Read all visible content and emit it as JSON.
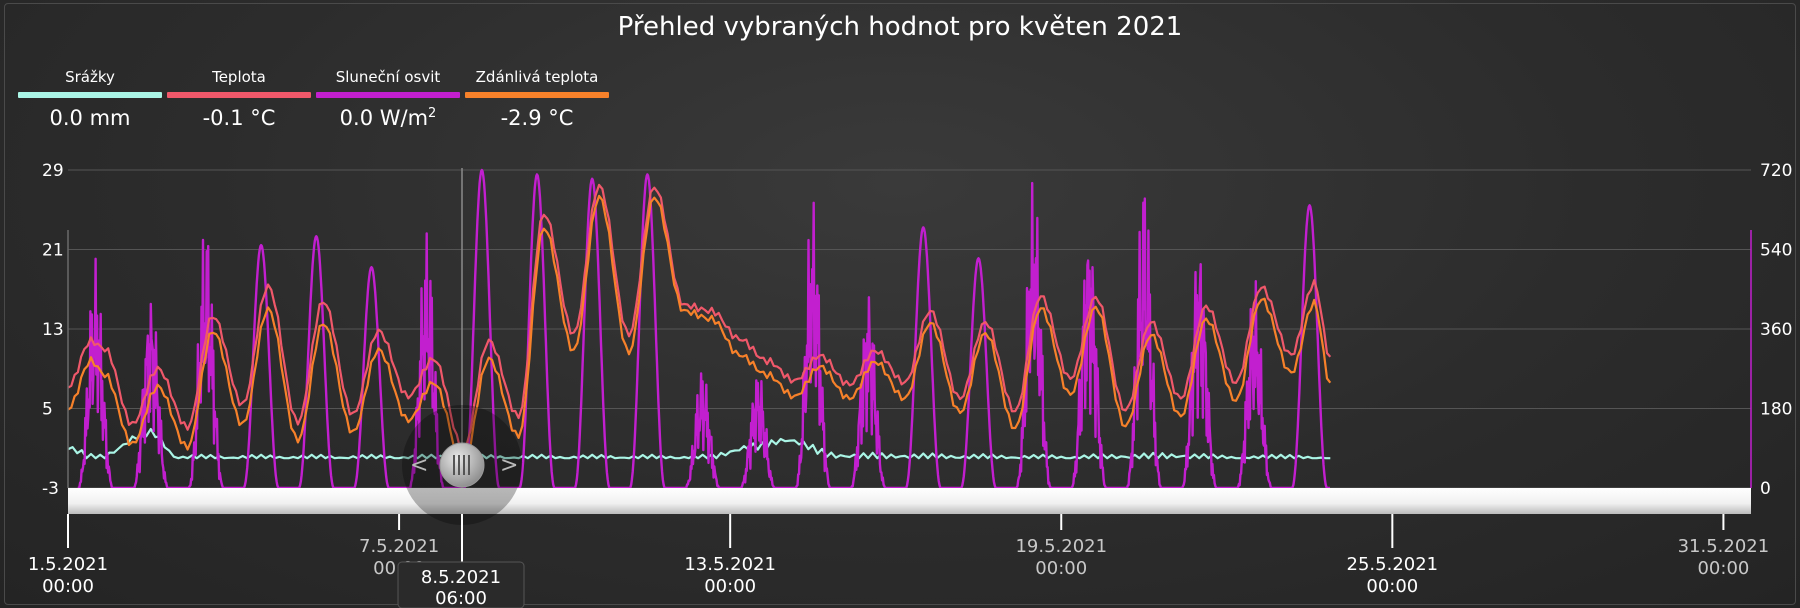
{
  "title": "Přehled vybraných hodnot pro květen 2021",
  "legend": [
    {
      "name": "Srážky",
      "value": "0.0 mm",
      "color": "#aaf5e6"
    },
    {
      "name": "Teplota",
      "value": "-0.1 °C",
      "color": "#f0586a"
    },
    {
      "name": "Sluneční osvit",
      "value_main": "0.0 W/m",
      "value_sup": "2",
      "color": "#c21fcf"
    },
    {
      "name": "Zdánlivá teplota",
      "value": "-2.9 °C",
      "color": "#f7812a"
    }
  ],
  "cursor": {
    "date": "8.5.2021",
    "time": "06:00"
  },
  "x_ticks": [
    {
      "date": "1.5.2021",
      "time": "00:00",
      "dim": false,
      "row": "low"
    },
    {
      "date": "7.5.2021",
      "time": "00:00",
      "dim": true,
      "row": "high"
    },
    {
      "date": "13.5.2021",
      "time": "00:00",
      "dim": false,
      "row": "low"
    },
    {
      "date": "19.5.2021",
      "time": "00:00",
      "dim": true,
      "row": "high"
    },
    {
      "date": "25.5.2021",
      "time": "00:00",
      "dim": false,
      "row": "low"
    },
    {
      "date": "31.5.2021",
      "time": "00:00",
      "dim": true,
      "row": "high"
    }
  ],
  "chart_data": {
    "type": "line",
    "x_unit": "days since 1.5.2021 00:00",
    "xlim": [
      "1.5.2021 00:00",
      "31.5.2021 12:00"
    ],
    "y_left": {
      "ticks": [
        -3,
        5,
        13,
        21,
        29
      ],
      "ylim": [
        -3,
        29
      ]
    },
    "y_right": {
      "ticks": [
        0,
        180,
        360,
        540,
        720
      ],
      "ylim": [
        0,
        720
      ]
    },
    "grid": true,
    "legend_position": "top-left",
    "cursor_at": "8.5.2021 06:00",
    "series": [
      {
        "name": "Teplota",
        "axis": "left",
        "color": "#f0586a",
        "x": [
          "1.5.2021 00:00",
          "1.5.2021 10:00",
          "1.5.2021 16:00",
          "2.5.2021 04:00",
          "2.5.2021 15:00",
          "3.5.2021 04:00",
          "3.5.2021 15:00",
          "4.5.2021 04:00",
          "4.5.2021 15:00",
          "5.5.2021 04:00",
          "5.5.2021 15:00",
          "6.5.2021 04:00",
          "6.5.2021 15:00",
          "7.5.2021 04:00",
          "7.5.2021 15:00",
          "8.5.2021 04:00",
          "8.5.2021 15:00",
          "9.5.2021 04:00",
          "9.5.2021 15:00",
          "10.5.2021 04:00",
          "10.5.2021 15:00",
          "11.5.2021 04:00",
          "11.5.2021 15:00",
          "12.5.2021 04:00",
          "12.5.2021 16:00",
          "13.5.2021 04:00",
          "13.5.2021 16:00",
          "14.5.2021 04:00",
          "14.5.2021 15:00",
          "15.5.2021 04:00",
          "15.5.2021 15:00",
          "16.5.2021 04:00",
          "16.5.2021 15:00",
          "17.5.2021 04:00",
          "17.5.2021 15:00",
          "18.5.2021 04:00",
          "18.5.2021 15:00",
          "19.5.2021 04:00",
          "19.5.2021 15:00",
          "20.5.2021 04:00",
          "20.5.2021 15:00",
          "21.5.2021 04:00",
          "21.5.2021 15:00",
          "22.5.2021 04:00",
          "22.5.2021 15:00",
          "23.5.2021 04:00",
          "23.5.2021 14:00",
          "23.5.2021 21:00"
        ],
        "values": [
          7.2,
          11.8,
          11.0,
          3.4,
          9.0,
          3.1,
          14.3,
          5.4,
          17.3,
          3.6,
          15.8,
          4.4,
          12.8,
          6.2,
          10.0,
          1.0,
          11.8,
          4.2,
          24.6,
          12.5,
          27.4,
          12.4,
          27.3,
          15.4,
          14.8,
          12.0,
          9.8,
          7.8,
          10.3,
          7.4,
          10.8,
          7.6,
          14.8,
          6.0,
          13.7,
          4.7,
          16.3,
          8.0,
          16.2,
          4.8,
          13.7,
          6.0,
          15.3,
          7.6,
          17.2,
          10.4,
          17.6,
          10.2
        ]
      },
      {
        "name": "Zdánlivá teplota",
        "axis": "left",
        "color": "#f7812a",
        "x": [
          "1.5.2021 00:00",
          "1.5.2021 10:00",
          "1.5.2021 16:00",
          "2.5.2021 04:00",
          "2.5.2021 15:00",
          "3.5.2021 04:00",
          "3.5.2021 15:00",
          "4.5.2021 04:00",
          "4.5.2021 15:00",
          "5.5.2021 04:00",
          "5.5.2021 15:00",
          "6.5.2021 04:00",
          "6.5.2021 15:00",
          "7.5.2021 04:00",
          "7.5.2021 15:00",
          "8.5.2021 04:00",
          "8.5.2021 15:00",
          "9.5.2021 04:00",
          "9.5.2021 15:00",
          "10.5.2021 04:00",
          "10.5.2021 15:00",
          "11.5.2021 04:00",
          "11.5.2021 15:00",
          "12.5.2021 04:00",
          "12.5.2021 16:00",
          "13.5.2021 04:00",
          "13.5.2021 16:00",
          "14.5.2021 04:00",
          "14.5.2021 15:00",
          "15.5.2021 04:00",
          "15.5.2021 15:00",
          "16.5.2021 04:00",
          "16.5.2021 15:00",
          "17.5.2021 04:00",
          "17.5.2021 15:00",
          "18.5.2021 04:00",
          "18.5.2021 15:00",
          "19.5.2021 04:00",
          "19.5.2021 15:00",
          "20.5.2021 04:00",
          "20.5.2021 15:00",
          "21.5.2021 04:00",
          "21.5.2021 15:00",
          "22.5.2021 04:00",
          "22.5.2021 15:00",
          "23.5.2021 04:00",
          "23.5.2021 14:00",
          "23.5.2021 21:00"
        ],
        "values": [
          5.0,
          9.8,
          8.4,
          1.4,
          7.2,
          1.1,
          12.8,
          3.4,
          15.0,
          1.8,
          13.6,
          2.6,
          10.9,
          3.8,
          7.6,
          -0.5,
          10.0,
          2.2,
          23.2,
          10.8,
          26.3,
          10.6,
          26.3,
          14.8,
          14.0,
          10.4,
          8.4,
          6.2,
          9.2,
          6.0,
          9.7,
          6.0,
          13.6,
          4.6,
          12.6,
          3.0,
          15.1,
          6.4,
          15.2,
          3.2,
          12.4,
          4.2,
          14.0,
          5.8,
          16.0,
          8.6,
          15.6,
          7.6
        ]
      },
      {
        "name": "Sluneční osvit",
        "axis": "right",
        "color": "#c21fcf",
        "x": [
          "1.5.2021 12:00",
          "2.5.2021 12:00",
          "3.5.2021 12:00",
          "4.5.2021 12:00",
          "5.5.2021 12:00",
          "6.5.2021 12:00",
          "7.5.2021 12:00",
          "8.5.2021 12:00",
          "9.5.2021 12:00",
          "10.5.2021 12:00",
          "11.5.2021 12:00",
          "12.5.2021 12:00",
          "13.5.2021 12:00",
          "14.5.2021 12:00",
          "15.5.2021 12:00",
          "16.5.2021 12:00",
          "17.5.2021 12:00",
          "18.5.2021 12:00",
          "19.5.2021 12:00",
          "20.5.2021 12:00",
          "21.5.2021 12:00",
          "22.5.2021 12:00",
          "23.5.2021 12:00"
        ],
        "values": [
          330,
          300,
          385,
          550,
          570,
          500,
          370,
          720,
          710,
          700,
          710,
          180,
          180,
          420,
          300,
          590,
          520,
          440,
          410,
          450,
          380,
          300,
          640
        ]
      },
      {
        "name": "Srážky",
        "axis": "left",
        "color": "#aaf5e6",
        "x": [
          "1.5.2021 00:00",
          "1.5.2021 12:00",
          "2.5.2021 12:00",
          "3.5.2021 00:00",
          "7.5.2021 00:00",
          "12.5.2021 12:00",
          "13.5.2021 12:00",
          "14.5.2021 00:00",
          "15.5.2021 00:00",
          "19.5.2021 00:00",
          "21.5.2021 00:00",
          "22.5.2021 00:00",
          "23.5.2021 21:00"
        ],
        "values": [
          1.0,
          0.0,
          2.6,
          0.0,
          0.0,
          0.0,
          1.2,
          1.8,
          0.2,
          0.0,
          0.2,
          0.0,
          0.0
        ]
      }
    ]
  }
}
